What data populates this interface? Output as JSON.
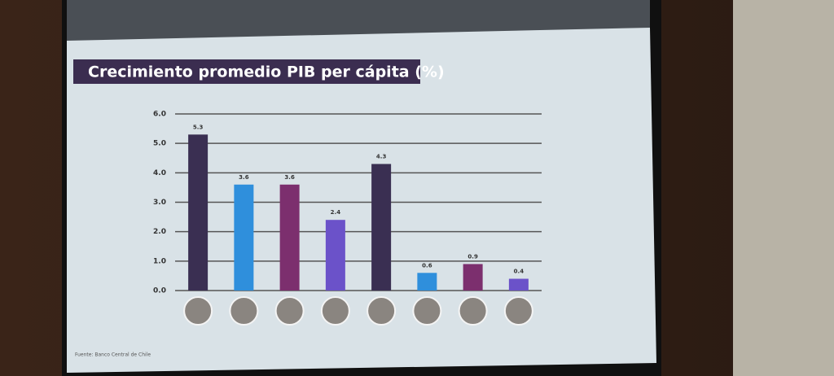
{
  "chart_data": {
    "type": "bar",
    "title": "Crecimiento promedio PIB per cápita (%)",
    "values": [
      5.3,
      3.6,
      3.6,
      2.4,
      4.3,
      0.6,
      0.9,
      0.4
    ],
    "colors": [
      "#3a2f52",
      "#2f8fdc",
      "#7c2f6e",
      "#6b52c9",
      "#3a2f52",
      "#2f8fdc",
      "#7c2f6e",
      "#6b52c9"
    ],
    "ylim": [
      0,
      6
    ],
    "yticks": [
      {
        "value": 0,
        "label": "0.0"
      },
      {
        "value": 1,
        "label": "1.0"
      },
      {
        "value": 2,
        "label": "2.0"
      },
      {
        "value": 3,
        "label": "3.0"
      },
      {
        "value": 4,
        "label": "4.0"
      },
      {
        "value": 5,
        "label": "5.0"
      },
      {
        "value": 6,
        "label": "6.0"
      }
    ],
    "grid": true,
    "source": "Fuente: Banco Central de Chile"
  }
}
